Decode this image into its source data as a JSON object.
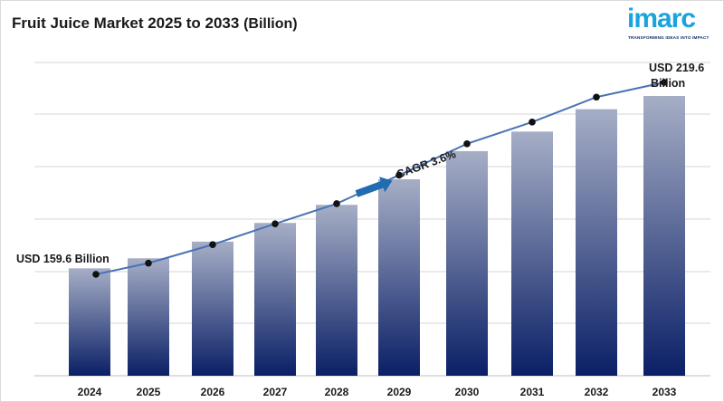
{
  "header": {
    "title_main": "Fruit Juice Market 2025 to 2033",
    "title_unit": "(Billion)"
  },
  "logo": {
    "word": "imarc",
    "tagline": "TRANSFORMING IDEAS INTO IMPACT",
    "color": "#1aa3dd"
  },
  "chart_data": {
    "type": "bar",
    "categories": [
      "2024",
      "2025",
      "2026",
      "2027",
      "2028",
      "2029",
      "2030",
      "2031",
      "2032",
      "2033"
    ],
    "values": [
      159.6,
      163.1,
      168.9,
      175.4,
      181.7,
      190.6,
      200.4,
      207.2,
      215.0,
      219.6
    ],
    "line_overlay": true,
    "grid": true,
    "annotations": {
      "start": "USD 159.6 Billion",
      "end_line1": "USD 219.6",
      "end_line2": "Billion",
      "cagr": "CAGR 3.6%"
    },
    "colors": {
      "bar_top": "#a6aec6",
      "bar_bottom": "#0a1f66",
      "line": "#4a72b8",
      "marker": "#111111",
      "arrow": "#1f6cb0",
      "grid": "#d6d6d6"
    }
  }
}
